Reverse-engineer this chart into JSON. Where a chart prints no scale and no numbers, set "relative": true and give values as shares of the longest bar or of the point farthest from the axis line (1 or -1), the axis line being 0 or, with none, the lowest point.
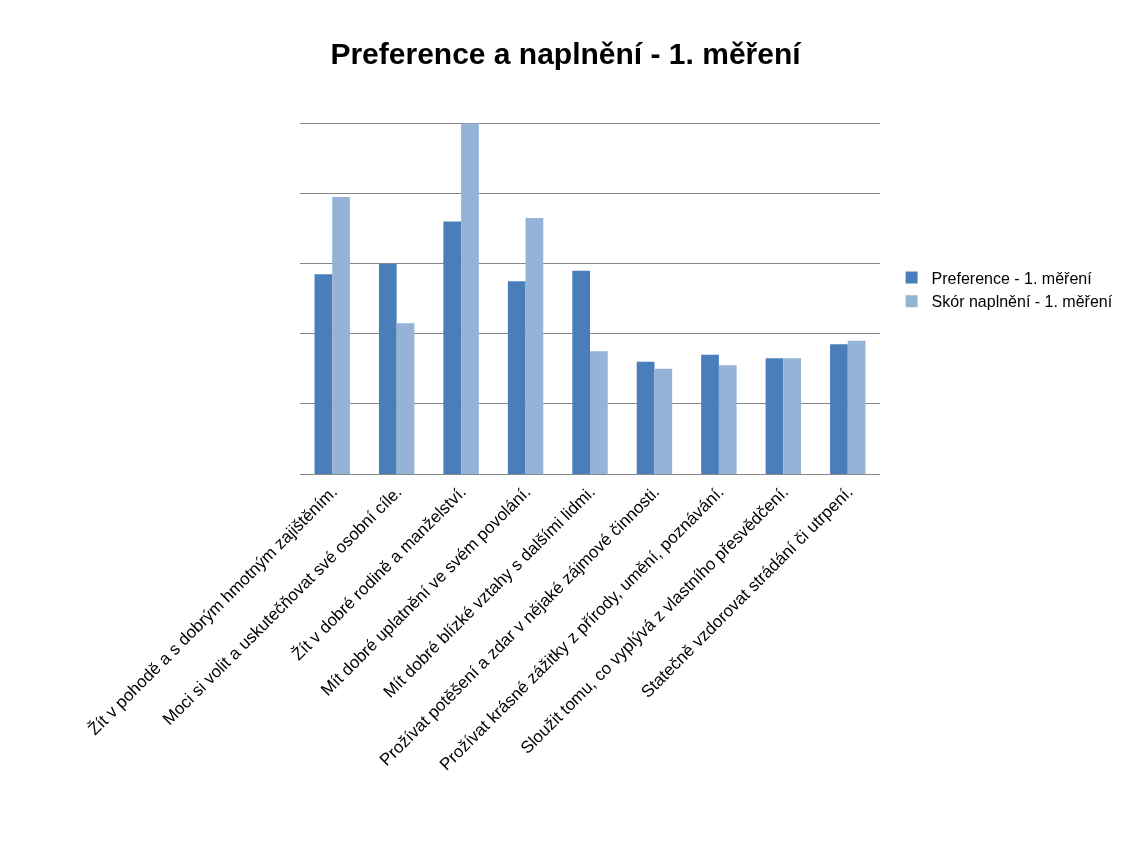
{
  "chart_data": {
    "type": "bar",
    "title": "Preference a naplnění - 1. měření",
    "relative": true,
    "grid": "y",
    "legend": "right",
    "categories": [
      "Žít v pohodě a s dobrým hmotným zajištěním.",
      "Moci si volit a uskutečňovat své osobní cíle.",
      "Žít v dobré rodině a manželství.",
      "Mít dobré uplatnění ve svém povolání.",
      "Mít dobré blízké vztahy s dalšími lidmi.",
      "Prožívat potěšení a zdar v nějaké zájmové činnosti.",
      "Prožívat krásné zážitky z přírody, umění, poznávání.",
      "Sloužit tomu, co vyplývá z vlastního přesvědčení.",
      "Statečně vzdorovat strádání či utrpení."
    ],
    "series": [
      {
        "name": "Preference - 1. měření",
        "color": "#4a7ebb",
        "values": [
          0.57,
          0.6,
          0.72,
          0.55,
          0.58,
          0.32,
          0.34,
          0.33,
          0.37
        ]
      },
      {
        "name": "Skór naplnění - 1. měření",
        "color": "#95b3d7",
        "values": [
          0.79,
          0.43,
          1,
          0.73,
          0.35,
          0.3,
          0.31,
          0.33,
          0.38
        ]
      }
    ]
  }
}
